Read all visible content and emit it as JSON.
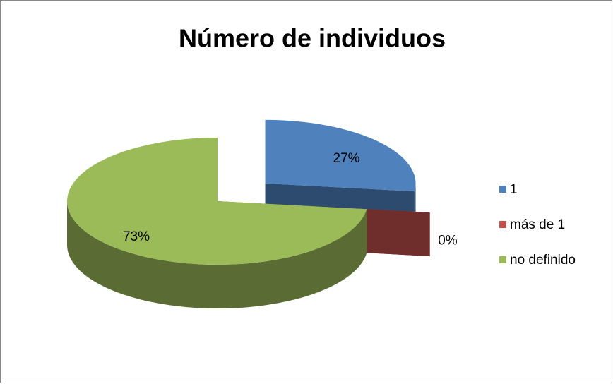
{
  "chart_data": {
    "type": "pie",
    "title": "Número de individuos",
    "categories": [
      "1",
      "más de 1",
      "no definido"
    ],
    "values": [
      27,
      0,
      73
    ],
    "value_labels": [
      "27%",
      "0%",
      "73%"
    ],
    "colors": [
      "#4f81bd",
      "#c0504d",
      "#9bbb59"
    ],
    "legend": "right"
  }
}
